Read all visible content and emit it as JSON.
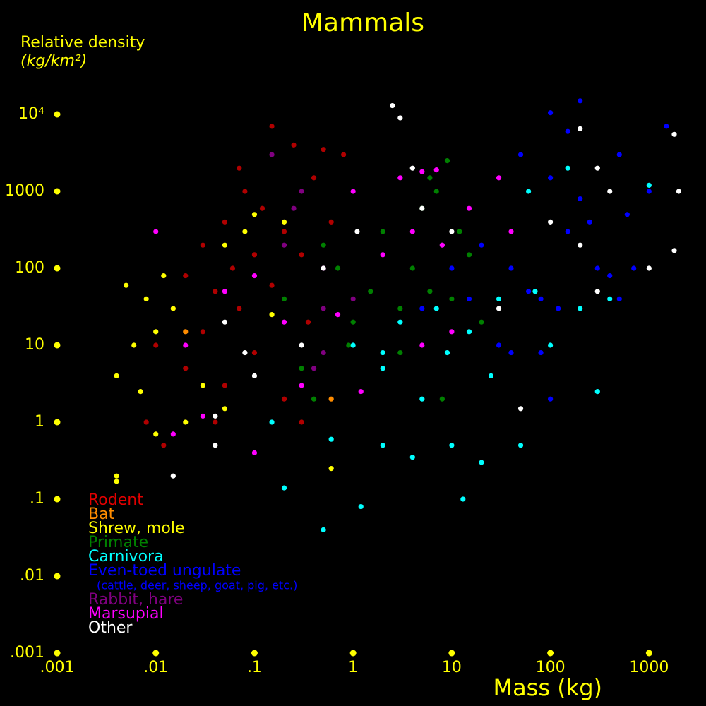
{
  "chart_data": {
    "type": "scatter",
    "title": "Mammals",
    "y_label": "Relative density",
    "y_unit": "(kg/km²)",
    "x_label": "Mass (kg)",
    "log_x": true,
    "log_y": true,
    "xlim": [
      0.001,
      3000
    ],
    "ylim": [
      0.001,
      100000
    ],
    "xticks": [
      {
        "value": 0.001,
        "label": ".001"
      },
      {
        "value": 0.01,
        "label": ".01"
      },
      {
        "value": 0.1,
        "label": ".1"
      },
      1,
      10,
      100,
      1000
    ],
    "yticks": [
      {
        "value": 0.001,
        "label": ".001"
      },
      {
        "value": 0.01,
        "label": ".01"
      },
      {
        "value": 0.1,
        "label": ".1"
      },
      1,
      10,
      100,
      1000,
      {
        "value": 10000,
        "label": "10⁴"
      }
    ],
    "tick_color": "#ffff00",
    "series": [
      {
        "name": "Rodent",
        "color": "#b00000",
        "legend_color": "#e00000",
        "x": [
          0.01,
          0.015,
          0.02,
          0.02,
          0.03,
          0.03,
          0.04,
          0.05,
          0.05,
          0.06,
          0.07,
          0.08,
          0.1,
          0.1,
          0.12,
          0.15,
          0.15,
          0.2,
          0.2,
          0.25,
          0.3,
          0.35,
          0.4,
          0.5,
          0.6,
          0.8,
          0.008,
          0.012,
          0.04,
          0.07,
          0.3
        ],
        "values": [
          10,
          30,
          5,
          80,
          200,
          15,
          50,
          400,
          3,
          100,
          30,
          1000,
          150,
          8,
          600,
          7000,
          60,
          300,
          2,
          4000,
          150,
          20,
          1500,
          3500,
          400,
          3000,
          1,
          0.5,
          1,
          2000,
          1
        ]
      },
      {
        "name": "Bat",
        "color": "#ff8c00",
        "x": [
          0.6,
          0.02
        ],
        "values": [
          2,
          15
        ]
      },
      {
        "name": "Shrew, mole",
        "color": "#ffff00",
        "x": [
          0.004,
          0.004,
          0.004,
          0.005,
          0.006,
          0.007,
          0.008,
          0.01,
          0.01,
          0.012,
          0.015,
          0.02,
          0.03,
          0.05,
          0.05,
          0.08,
          0.1,
          0.2,
          0.6,
          0.15
        ],
        "values": [
          0.2,
          0.17,
          4,
          60,
          10,
          2.5,
          40,
          15,
          0.7,
          80,
          30,
          1,
          3,
          1.5,
          200,
          300,
          500,
          400,
          0.25,
          25
        ]
      },
      {
        "name": "Primate",
        "color": "#008000",
        "x": [
          0.2,
          0.3,
          0.5,
          0.7,
          1,
          1.5,
          2,
          3,
          4,
          5,
          6,
          7,
          8,
          9,
          10,
          12,
          15,
          20,
          8,
          0.4,
          3,
          6,
          0.9
        ],
        "values": [
          40,
          5,
          200,
          100,
          20,
          50,
          300,
          30,
          100,
          600,
          50,
          1000,
          200,
          2500,
          40,
          300,
          150,
          20,
          2,
          2,
          8,
          1500,
          10
        ]
      },
      {
        "name": "Carnivora",
        "color": "#00ffff",
        "x": [
          0.2,
          0.15,
          0.5,
          0.6,
          1.2,
          1,
          2,
          2,
          3,
          4,
          5,
          7,
          9,
          10,
          13,
          15,
          20,
          25,
          30,
          50,
          70,
          100,
          150,
          200,
          300,
          400,
          1000,
          60,
          2
        ],
        "values": [
          0.14,
          1,
          0.04,
          0.6,
          0.08,
          10,
          5,
          0.5,
          20,
          0.35,
          2,
          30,
          8,
          0.5,
          0.1,
          15,
          0.3,
          4,
          40,
          0.5,
          50,
          10,
          2000,
          30,
          2.5,
          40,
          1200,
          1000,
          8
        ]
      },
      {
        "name": "Even-toed ungulate",
        "color": "#0000ff",
        "description": "(cattle, deer, sheep, goat, pig, etc.)",
        "x": [
          5,
          10,
          15,
          20,
          30,
          40,
          50,
          60,
          80,
          100,
          100,
          120,
          150,
          150,
          200,
          250,
          300,
          400,
          500,
          600,
          700,
          1000,
          1500,
          80,
          100,
          200,
          500,
          40
        ],
        "values": [
          30,
          100,
          40,
          200,
          10,
          100,
          3000,
          50,
          40,
          1500,
          10500,
          30,
          300,
          6000,
          15000,
          400,
          100,
          80,
          40,
          500,
          100,
          1000,
          7000,
          8,
          2,
          800,
          3000,
          8
        ]
      },
      {
        "name": "Rabbit, hare",
        "color": "#800080",
        "x": [
          0.15,
          0.3,
          0.2,
          0.5,
          0.4,
          1,
          0.25,
          0.5
        ],
        "values": [
          3000,
          1000,
          200,
          30,
          5,
          40,
          600,
          8
        ]
      },
      {
        "name": "Marsupial",
        "color": "#ff00ff",
        "x": [
          0.01,
          0.015,
          0.02,
          0.03,
          0.05,
          0.1,
          0.1,
          0.2,
          0.3,
          0.5,
          0.7,
          1,
          1.2,
          2,
          3,
          4,
          5,
          7,
          8,
          10,
          15,
          30,
          40,
          5
        ],
        "values": [
          300,
          0.7,
          10,
          1.2,
          50,
          0.4,
          80,
          20,
          3,
          100,
          25,
          1000,
          2.5,
          150,
          1500,
          300,
          1800,
          1900,
          200,
          15,
          600,
          1500,
          300,
          10
        ]
      },
      {
        "name": "Other",
        "color": "#ffffff",
        "x": [
          2.5,
          3,
          1.1,
          0.5,
          0.3,
          0.05,
          0.08,
          0.1,
          0.04,
          0.015,
          0.04,
          4,
          5,
          10,
          30,
          100,
          200,
          300,
          400,
          300,
          1000,
          1800,
          2000,
          1800,
          50,
          200
        ],
        "values": [
          13000,
          9000,
          300,
          100,
          10,
          20,
          8,
          4,
          1.2,
          0.2,
          0.5,
          2000,
          600,
          300,
          30,
          400,
          6500,
          2000,
          1000,
          50,
          100,
          5500,
          1000,
          170,
          1.5,
          200
        ]
      }
    ]
  }
}
